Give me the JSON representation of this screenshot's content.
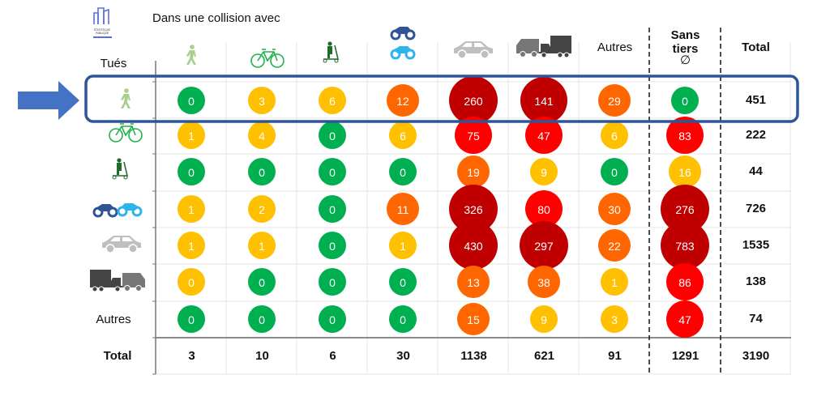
{
  "chart_data": {
    "type": "heatmap",
    "title": "Dans une collision avec",
    "corner_label": "Tués",
    "columns": [
      {
        "key": "pieton",
        "label": "",
        "icon": "pedestrian-icon"
      },
      {
        "key": "velo",
        "label": "",
        "icon": "bicycle-icon"
      },
      {
        "key": "edp",
        "label": "",
        "icon": "scooter-icon"
      },
      {
        "key": "2rm",
        "label": "",
        "icon": "motorcycle-moped-icon"
      },
      {
        "key": "vt",
        "label": "",
        "icon": "car-icon"
      },
      {
        "key": "vu_pl",
        "label": "",
        "icon": "truck-van-icon"
      },
      {
        "key": "autres",
        "label": "Autres",
        "icon": ""
      },
      {
        "key": "sans_tiers",
        "label": "Sans tiers",
        "symbol": "∅",
        "icon": ""
      },
      {
        "key": "total",
        "label": "Total",
        "icon": ""
      }
    ],
    "rows": [
      {
        "key": "pieton",
        "label": "",
        "icon": "pedestrian-icon",
        "values": [
          0,
          3,
          6,
          12,
          260,
          141,
          29,
          0
        ],
        "total": 451,
        "highlighted": true
      },
      {
        "key": "velo",
        "label": "",
        "icon": "bicycle-icon",
        "values": [
          1,
          4,
          0,
          6,
          75,
          47,
          6,
          83
        ],
        "total": 222
      },
      {
        "key": "edp",
        "label": "",
        "icon": "scooter-icon",
        "values": [
          0,
          0,
          0,
          0,
          19,
          9,
          0,
          16
        ],
        "total": 44
      },
      {
        "key": "2rm",
        "label": "",
        "icon": "motorcycle-moped-icon",
        "values": [
          1,
          2,
          0,
          11,
          326,
          80,
          30,
          276
        ],
        "total": 726
      },
      {
        "key": "vt",
        "label": "",
        "icon": "car-icon",
        "values": [
          1,
          1,
          0,
          1,
          430,
          297,
          22,
          783
        ],
        "total": 1535
      },
      {
        "key": "vu_pl",
        "label": "",
        "icon": "truck-van-icon",
        "values": [
          0,
          0,
          0,
          0,
          13,
          38,
          1,
          86
        ],
        "total": 138
      },
      {
        "key": "autres",
        "label": "Autres",
        "icon": "",
        "values": [
          0,
          0,
          0,
          0,
          15,
          9,
          3,
          47
        ],
        "total": 74
      }
    ],
    "totals_row": {
      "label": "Total",
      "values": [
        3,
        10,
        6,
        30,
        1138,
        621,
        91,
        1291
      ],
      "grand_total": 3190
    },
    "color_scale": [
      {
        "name": "green",
        "color": "#00b050"
      },
      {
        "name": "yellow",
        "color": "#ffc000"
      },
      {
        "name": "orange",
        "color": "#ff6600"
      },
      {
        "name": "red",
        "color": "#ff0000"
      },
      {
        "name": "dark-red",
        "color": "#c00000"
      }
    ],
    "cell_colors": [
      [
        "green",
        "yellow",
        "yellow",
        "orange",
        "dark-red",
        "dark-red",
        "orange",
        "green"
      ],
      [
        "yellow",
        "yellow",
        "green",
        "yellow",
        "red",
        "red",
        "yellow",
        "red"
      ],
      [
        "green",
        "green",
        "green",
        "green",
        "orange",
        "yellow",
        "green",
        "yellow"
      ],
      [
        "yellow",
        "yellow",
        "green",
        "orange",
        "dark-red",
        "red",
        "orange",
        "dark-red"
      ],
      [
        "yellow",
        "yellow",
        "green",
        "yellow",
        "dark-red",
        "dark-red",
        "orange",
        "dark-red"
      ],
      [
        "yellow",
        "green",
        "green",
        "green",
        "orange",
        "orange",
        "yellow",
        "red"
      ],
      [
        "green",
        "green",
        "green",
        "green",
        "orange",
        "yellow",
        "yellow",
        "red"
      ]
    ],
    "cell_size_class": [
      [
        "s",
        "s",
        "s",
        "m",
        "l",
        "l",
        "m",
        "s"
      ],
      [
        "s",
        "s",
        "s",
        "s",
        "m",
        "m",
        "s",
        "m"
      ],
      [
        "s",
        "s",
        "s",
        "s",
        "m",
        "s",
        "s",
        "m"
      ],
      [
        "s",
        "s",
        "s",
        "m",
        "l",
        "m",
        "m",
        "l"
      ],
      [
        "s",
        "s",
        "s",
        "s",
        "l",
        "l",
        "m",
        "l"
      ],
      [
        "s",
        "s",
        "s",
        "s",
        "m",
        "m",
        "s",
        "m"
      ],
      [
        "s",
        "s",
        "s",
        "s",
        "m",
        "s",
        "s",
        "m"
      ]
    ]
  },
  "logo": {
    "line1": "STATISTIQUE",
    "line2": "PUBLIQUE"
  },
  "highlight": {
    "arrow_color": "#4472c4",
    "box_color": "#2f5597"
  }
}
